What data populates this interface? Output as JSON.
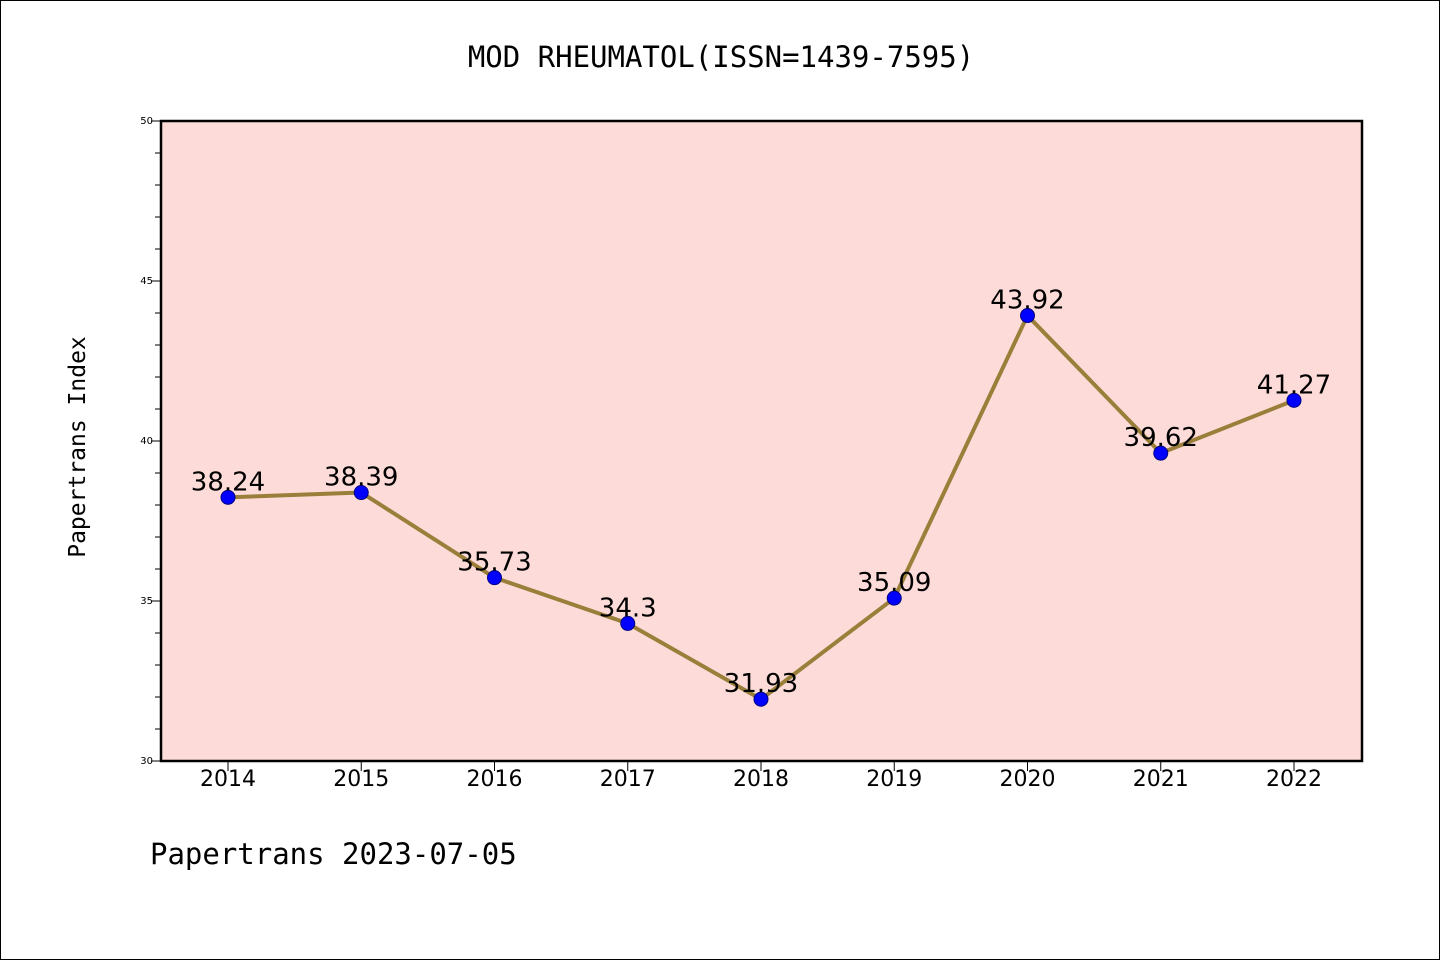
{
  "chart_data": {
    "type": "line",
    "title": "MOD RHEUMATOL(ISSN=1439-7595)",
    "xlabel": "",
    "ylabel": "Papertrans Index",
    "categories": [
      "2014",
      "2015",
      "2016",
      "2017",
      "2018",
      "2019",
      "2020",
      "2021",
      "2022"
    ],
    "series": [
      {
        "values": [
          38.24,
          38.39,
          35.73,
          34.3,
          31.93,
          35.09,
          43.92,
          39.62,
          41.27
        ],
        "data_labels": [
          "38.24",
          "38.39",
          "35.73",
          "34.3",
          "31.93",
          "35.09",
          "43.92",
          "39.62",
          "41.27"
        ],
        "line_color": "#9a7f3a",
        "marker_color": "#0000ff"
      }
    ],
    "ylim": [
      30,
      50
    ],
    "yticks": [
      "30",
      "35",
      "40",
      "45",
      "50"
    ],
    "plot_background": "#fddbd8",
    "grid": false,
    "legend": "none"
  },
  "footer": "Papertrans 2023-07-05"
}
